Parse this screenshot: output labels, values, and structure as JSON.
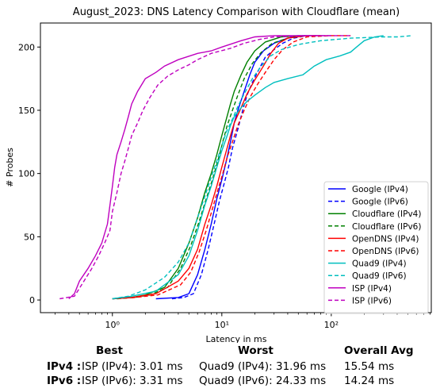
{
  "chart_data": {
    "type": "line",
    "title": "August_2023: DNS Latency Comparison with Cloudflare (mean)",
    "xlabel": "Latency in ms",
    "ylabel": "# Probes",
    "xscale": "log",
    "xlim": [
      0.22,
      820
    ],
    "ylim": [
      -10,
      219
    ],
    "xticks": [
      1,
      10,
      100
    ],
    "xtick_labels": [
      "10⁰",
      "10¹",
      "10²"
    ],
    "yticks": [
      0,
      50,
      100,
      150,
      200
    ],
    "grid": false,
    "legend_position": "lower-right",
    "series": [
      {
        "name": "Google (IPv4)",
        "color": "#0000ff",
        "style": "solid",
        "points": [
          [
            2.5,
            1
          ],
          [
            4,
            2
          ],
          [
            5,
            5
          ],
          [
            6,
            20
          ],
          [
            7,
            40
          ],
          [
            8,
            60
          ],
          [
            9,
            80
          ],
          [
            10,
            95
          ],
          [
            11,
            110
          ],
          [
            12,
            125
          ],
          [
            13,
            140
          ],
          [
            14,
            150
          ],
          [
            16,
            165
          ],
          [
            18,
            178
          ],
          [
            20,
            188
          ],
          [
            24,
            197
          ],
          [
            30,
            203
          ],
          [
            40,
            207
          ],
          [
            50,
            209
          ],
          [
            60,
            209
          ]
        ]
      },
      {
        "name": "Google (IPv6)",
        "color": "#0000ff",
        "style": "dashed",
        "points": [
          [
            3.5,
            1
          ],
          [
            4.5,
            2
          ],
          [
            5.5,
            5
          ],
          [
            6.5,
            20
          ],
          [
            7.5,
            40
          ],
          [
            8.5,
            60
          ],
          [
            9.5,
            78
          ],
          [
            10.5,
            92
          ],
          [
            11.5,
            105
          ],
          [
            12.5,
            120
          ],
          [
            14,
            135
          ],
          [
            15.5,
            150
          ],
          [
            17,
            162
          ],
          [
            19,
            172
          ],
          [
            22,
            183
          ],
          [
            25,
            192
          ],
          [
            30,
            198
          ],
          [
            36,
            203
          ],
          [
            45,
            207
          ],
          [
            60,
            209
          ],
          [
            80,
            209
          ]
        ]
      },
      {
        "name": "Cloudflare (IPv4)",
        "color": "#008000",
        "style": "solid",
        "points": [
          [
            1,
            1
          ],
          [
            1.5,
            2
          ],
          [
            2,
            4
          ],
          [
            3,
            10
          ],
          [
            4,
            25
          ],
          [
            5,
            45
          ],
          [
            6,
            65
          ],
          [
            7,
            85
          ],
          [
            8,
            100
          ],
          [
            9,
            115
          ],
          [
            10,
            130
          ],
          [
            11,
            143
          ],
          [
            12,
            155
          ],
          [
            13,
            165
          ],
          [
            15,
            178
          ],
          [
            17,
            188
          ],
          [
            20,
            197
          ],
          [
            25,
            204
          ],
          [
            35,
            208
          ],
          [
            50,
            209
          ]
        ]
      },
      {
        "name": "Cloudflare (IPv6)",
        "color": "#008000",
        "style": "dashed",
        "points": [
          [
            1.1,
            1
          ],
          [
            1.6,
            2
          ],
          [
            2.2,
            4
          ],
          [
            3.2,
            10
          ],
          [
            4.2,
            25
          ],
          [
            5.2,
            43
          ],
          [
            6.2,
            62
          ],
          [
            7.2,
            80
          ],
          [
            8.2,
            95
          ],
          [
            9.2,
            110
          ],
          [
            10.2,
            125
          ],
          [
            11.2,
            138
          ],
          [
            12.5,
            150
          ],
          [
            14,
            162
          ],
          [
            16,
            175
          ],
          [
            19,
            187
          ],
          [
            23,
            196
          ],
          [
            29,
            203
          ],
          [
            40,
            207
          ],
          [
            55,
            209
          ]
        ]
      },
      {
        "name": "OpenDNS (IPv4)",
        "color": "#ff0000",
        "style": "solid",
        "points": [
          [
            1,
            1
          ],
          [
            1.5,
            2
          ],
          [
            2.5,
            5
          ],
          [
            4,
            15
          ],
          [
            5,
            25
          ],
          [
            6,
            40
          ],
          [
            7,
            60
          ],
          [
            8,
            75
          ],
          [
            9,
            90
          ],
          [
            10,
            105
          ],
          [
            11,
            118
          ],
          [
            12,
            130
          ],
          [
            13,
            140
          ],
          [
            15,
            152
          ],
          [
            17,
            163
          ],
          [
            20,
            174
          ],
          [
            24,
            185
          ],
          [
            28,
            195
          ],
          [
            33,
            203
          ],
          [
            40,
            207
          ],
          [
            60,
            209
          ],
          [
            80,
            209
          ]
        ]
      },
      {
        "name": "OpenDNS (IPv6)",
        "color": "#ff0000",
        "style": "dashed",
        "points": [
          [
            1,
            1
          ],
          [
            1.6,
            2
          ],
          [
            2.6,
            4
          ],
          [
            4.2,
            12
          ],
          [
            5.2,
            22
          ],
          [
            6.2,
            38
          ],
          [
            7.2,
            55
          ],
          [
            8.2,
            72
          ],
          [
            9.2,
            87
          ],
          [
            10.2,
            100
          ],
          [
            11.2,
            113
          ],
          [
            12.5,
            125
          ],
          [
            14,
            138
          ],
          [
            16,
            150
          ],
          [
            18,
            160
          ],
          [
            21,
            170
          ],
          [
            25,
            180
          ],
          [
            30,
            190
          ],
          [
            36,
            198
          ],
          [
            45,
            204
          ],
          [
            60,
            208
          ],
          [
            100,
            209
          ],
          [
            150,
            209
          ]
        ]
      },
      {
        "name": "Quad9 (IPv4)",
        "color": "#00bfbf",
        "style": "solid",
        "points": [
          [
            1,
            1
          ],
          [
            1.5,
            3
          ],
          [
            2.5,
            7
          ],
          [
            4,
            20
          ],
          [
            5,
            35
          ],
          [
            6,
            55
          ],
          [
            7,
            75
          ],
          [
            8,
            90
          ],
          [
            9,
            105
          ],
          [
            10,
            118
          ],
          [
            11,
            128
          ],
          [
            12,
            138
          ],
          [
            13,
            145
          ],
          [
            15,
            152
          ],
          [
            17,
            157
          ],
          [
            20,
            162
          ],
          [
            25,
            168
          ],
          [
            30,
            172
          ],
          [
            40,
            175
          ],
          [
            55,
            178
          ],
          [
            70,
            185
          ],
          [
            90,
            190
          ],
          [
            120,
            193
          ],
          [
            150,
            196
          ],
          [
            170,
            200
          ],
          [
            200,
            205
          ],
          [
            250,
            208
          ],
          [
            300,
            209
          ]
        ]
      },
      {
        "name": "Quad9 (IPv6)",
        "color": "#00bfbf",
        "style": "dashed",
        "points": [
          [
            1,
            1
          ],
          [
            1.4,
            3
          ],
          [
            2,
            8
          ],
          [
            3,
            18
          ],
          [
            4,
            30
          ],
          [
            5,
            45
          ],
          [
            6,
            65
          ],
          [
            7,
            82
          ],
          [
            8,
            97
          ],
          [
            9,
            110
          ],
          [
            10,
            122
          ],
          [
            11,
            133
          ],
          [
            12.5,
            143
          ],
          [
            14,
            153
          ],
          [
            16,
            163
          ],
          [
            19,
            175
          ],
          [
            23,
            185
          ],
          [
            28,
            193
          ],
          [
            35,
            198
          ],
          [
            50,
            202
          ],
          [
            80,
            205
          ],
          [
            150,
            207
          ],
          [
            300,
            208
          ],
          [
            400,
            208
          ],
          [
            550,
            209
          ]
        ]
      },
      {
        "name": "ISP (IPv4)",
        "color": "#bf00bf",
        "style": "solid",
        "points": [
          [
            0.4,
            1
          ],
          [
            0.45,
            5
          ],
          [
            0.5,
            15
          ],
          [
            0.6,
            25
          ],
          [
            0.7,
            35
          ],
          [
            0.8,
            45
          ],
          [
            0.9,
            60
          ],
          [
            0.95,
            75
          ],
          [
            1,
            90
          ],
          [
            1.05,
            105
          ],
          [
            1.1,
            115
          ],
          [
            1.2,
            125
          ],
          [
            1.3,
            135
          ],
          [
            1.4,
            145
          ],
          [
            1.5,
            155
          ],
          [
            1.7,
            165
          ],
          [
            2,
            175
          ],
          [
            2.5,
            180
          ],
          [
            3,
            185
          ],
          [
            4,
            190
          ],
          [
            6,
            195
          ],
          [
            8,
            197
          ],
          [
            10,
            200
          ],
          [
            15,
            205
          ],
          [
            20,
            208
          ],
          [
            30,
            209
          ],
          [
            60,
            209
          ],
          [
            100,
            209
          ]
        ]
      },
      {
        "name": "ISP (IPv6)",
        "color": "#bf00bf",
        "style": "dashed",
        "points": [
          [
            0.33,
            1
          ],
          [
            0.45,
            3
          ],
          [
            0.55,
            15
          ],
          [
            0.65,
            25
          ],
          [
            0.75,
            35
          ],
          [
            0.85,
            45
          ],
          [
            0.95,
            55
          ],
          [
            1,
            70
          ],
          [
            1.1,
            85
          ],
          [
            1.2,
            100
          ],
          [
            1.3,
            110
          ],
          [
            1.4,
            120
          ],
          [
            1.5,
            130
          ],
          [
            1.7,
            140
          ],
          [
            1.9,
            150
          ],
          [
            2.2,
            160
          ],
          [
            2.6,
            170
          ],
          [
            3.2,
            177
          ],
          [
            4,
            182
          ],
          [
            5,
            186
          ],
          [
            6,
            190
          ],
          [
            8,
            195
          ],
          [
            12,
            199
          ],
          [
            16,
            203
          ],
          [
            22,
            206
          ],
          [
            30,
            208
          ],
          [
            60,
            209
          ],
          [
            100,
            209
          ],
          [
            150,
            209
          ]
        ]
      }
    ]
  },
  "stats": {
    "headers": {
      "best": "Best",
      "worst": "Worst",
      "avg": "Overall Avg"
    },
    "rows": [
      {
        "label": "IPv4 :",
        "best": "ISP (IPv4): 3.01 ms",
        "worst": "Quad9 (IPv4): 31.96 ms",
        "avg": "15.54 ms"
      },
      {
        "label": "IPv6 :",
        "best": "ISP (IPv6): 3.31 ms",
        "worst": "Quad9 (IPv6): 24.33 ms",
        "avg": "14.24 ms"
      }
    ]
  }
}
